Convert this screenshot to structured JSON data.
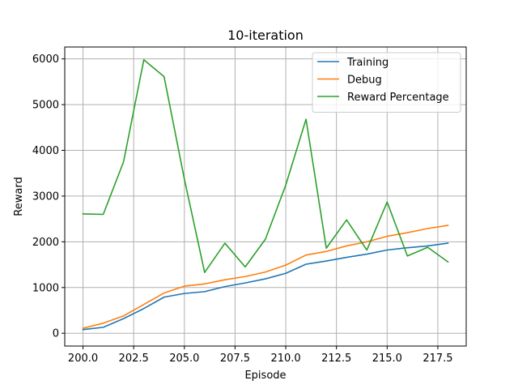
{
  "chart_data": {
    "type": "line",
    "title": "10-iteration",
    "xlabel": "Episode",
    "ylabel": "Reward",
    "xlim": [
      199.1,
      218.9
    ],
    "ylim": [
      -280,
      6260
    ],
    "xticks": [
      200.0,
      202.5,
      205.0,
      207.5,
      210.0,
      212.5,
      215.0,
      217.5
    ],
    "xtick_labels": [
      "200.0",
      "202.5",
      "205.0",
      "207.5",
      "210.0",
      "212.5",
      "215.0",
      "217.5"
    ],
    "yticks": [
      0,
      1000,
      2000,
      3000,
      4000,
      5000,
      6000
    ],
    "ytick_labels": [
      "0",
      "1000",
      "2000",
      "3000",
      "4000",
      "5000",
      "6000"
    ],
    "grid": true,
    "legend_position": "top-right",
    "x": [
      200,
      201,
      202,
      203,
      204,
      205,
      206,
      207,
      208,
      209,
      210,
      211,
      212,
      213,
      214,
      215,
      216,
      217,
      218
    ],
    "series": [
      {
        "name": "Training",
        "color": "#1f77b4",
        "values": [
          80,
          130,
          320,
          540,
          790,
          870,
          910,
          1020,
          1100,
          1190,
          1310,
          1510,
          1580,
          1660,
          1730,
          1820,
          1870,
          1910,
          1970
        ]
      },
      {
        "name": "Debug",
        "color": "#ff7f0e",
        "values": [
          110,
          220,
          380,
          630,
          880,
          1030,
          1080,
          1170,
          1240,
          1340,
          1490,
          1710,
          1790,
          1910,
          2000,
          2120,
          2200,
          2290,
          2360
        ]
      },
      {
        "name": "Reward Percentage",
        "color": "#2ca02c",
        "values": [
          2610,
          2600,
          3750,
          5980,
          5610,
          3370,
          1330,
          1970,
          1450,
          2060,
          3240,
          4680,
          1860,
          2480,
          1820,
          2870,
          1690,
          1880,
          1560
        ]
      }
    ]
  }
}
